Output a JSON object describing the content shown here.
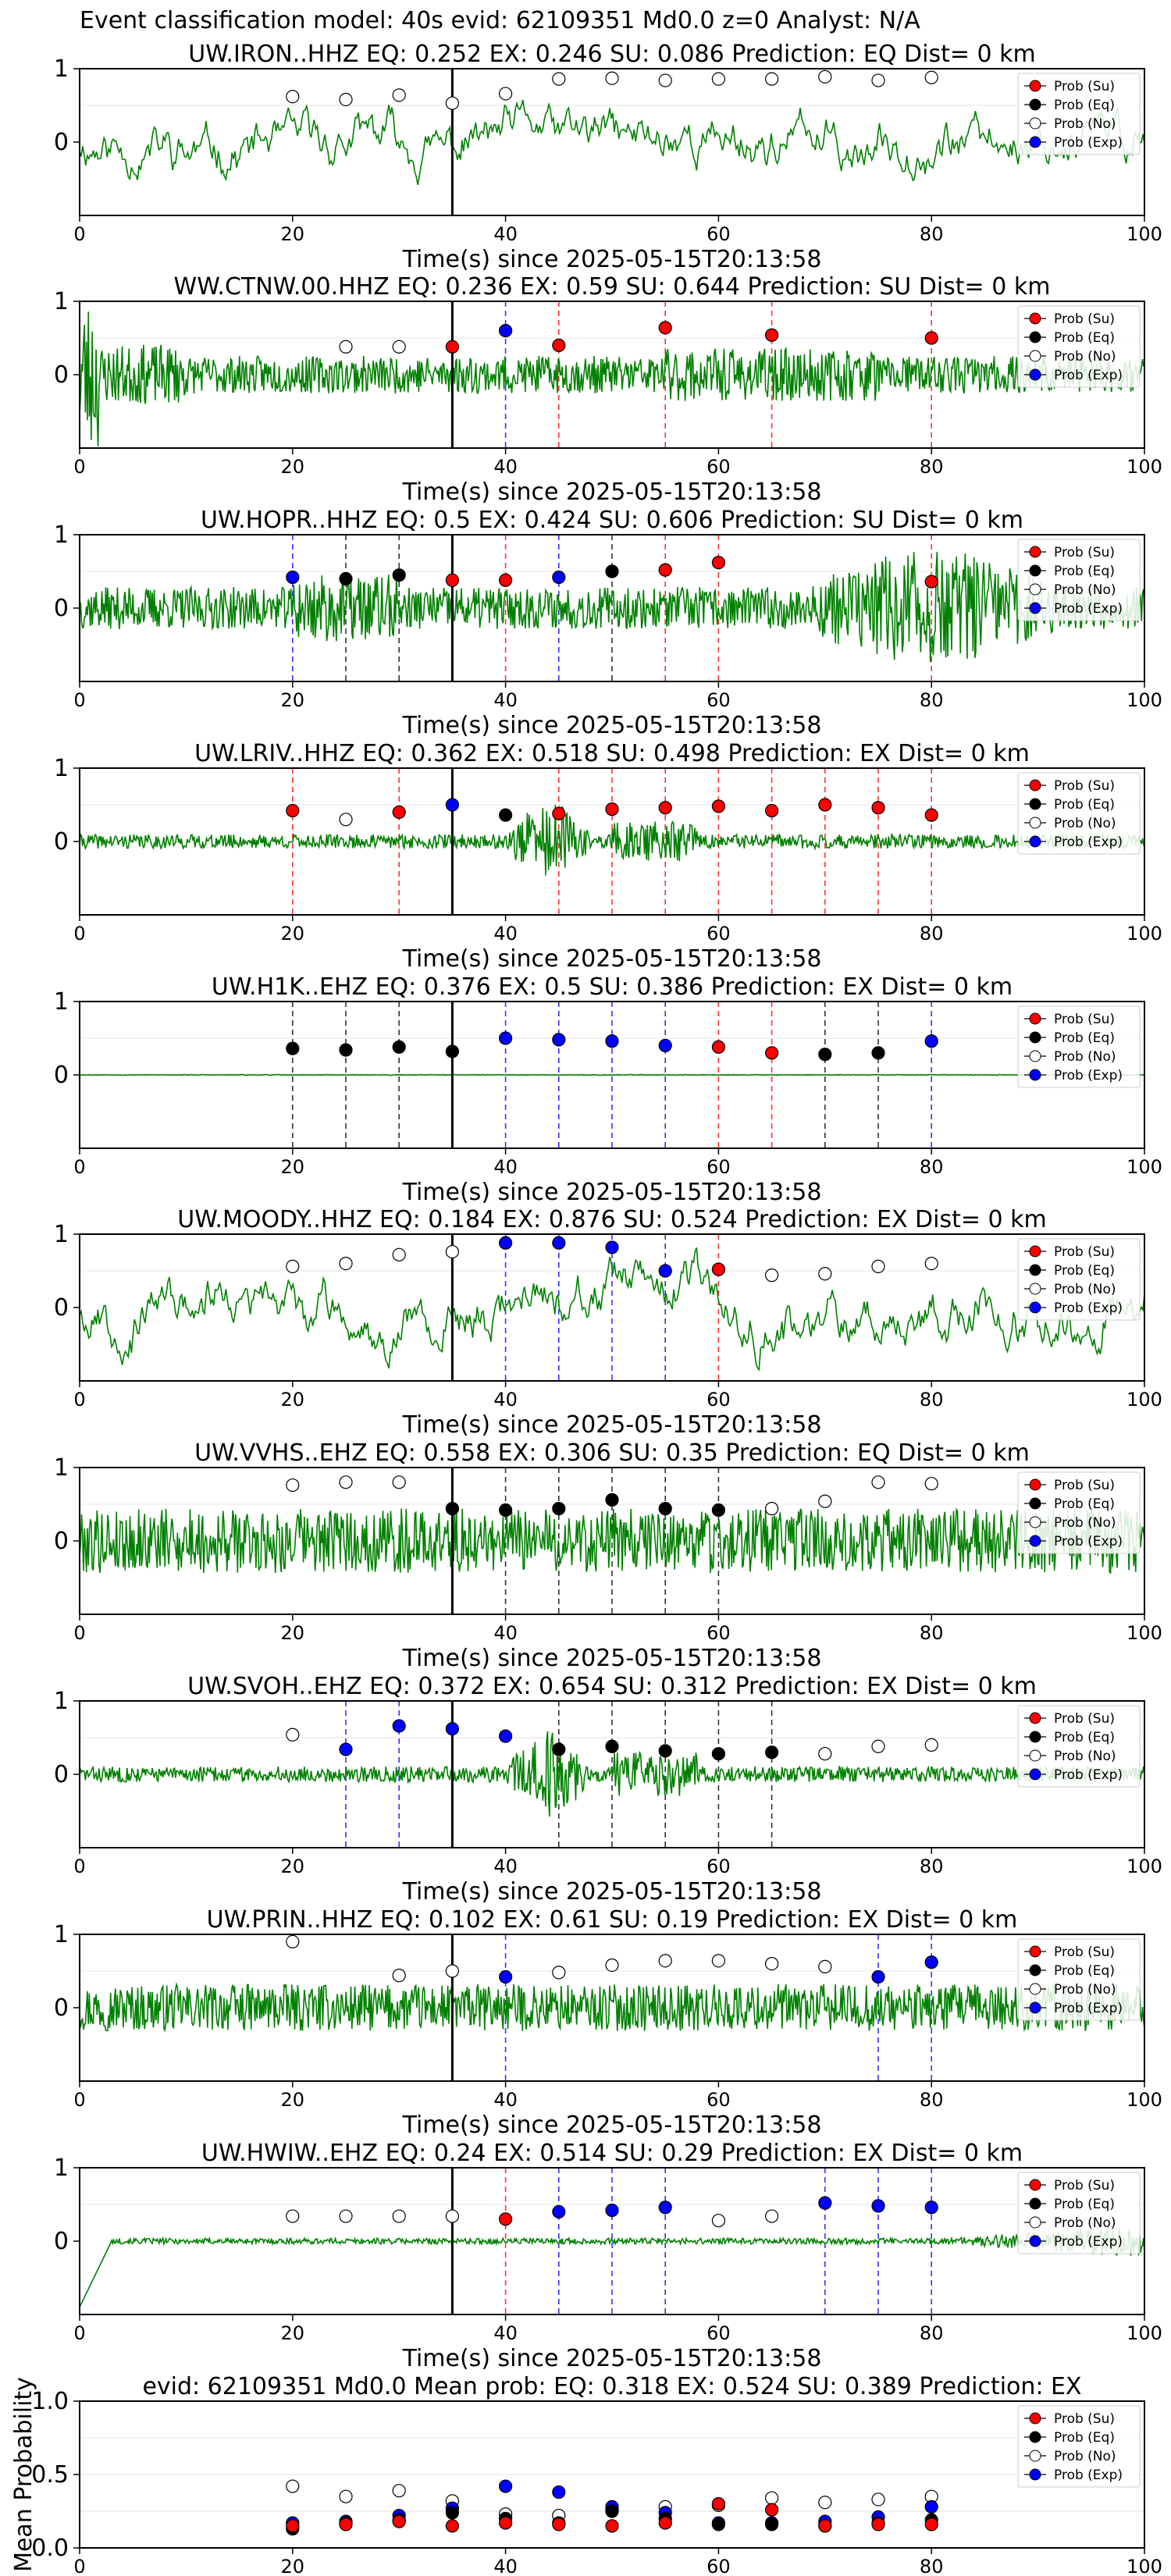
{
  "figure_title": "Event classification model: 40s evid: 62109351 Md0.0 z=0 Analyst: N/A",
  "legend_labels": [
    "Prob (Su)",
    "Prob (Eq)",
    "Prob (No)",
    "Prob (Exp)"
  ],
  "colors": {
    "su": "#ff0000",
    "eq": "#000000",
    "no": "#ffffff",
    "exp": "#0000ff",
    "trace": "#008000"
  },
  "chart_data": [
    {
      "type": "line",
      "title": "UW.IRON..HHZ   EQ: 0.252  EX: 0.246  SU: 0.086   Prediction: EQ    Dist= 0 km",
      "xlabel": "Time(s) since 2025-05-15T20:13:58",
      "xlim": [
        0,
        100
      ],
      "ylim": [
        -1,
        1
      ],
      "xticks": [
        0,
        20,
        40,
        60,
        80,
        100
      ],
      "yticks": [
        0,
        1
      ],
      "event_line": 35,
      "amplitude": 0.72,
      "seed": 11,
      "style": "lowfreq",
      "envelope": "uniform",
      "points": [
        [
          20,
          0.62,
          "no"
        ],
        [
          25,
          0.58,
          "no"
        ],
        [
          30,
          0.64,
          "no"
        ],
        [
          35,
          0.53,
          "no"
        ],
        [
          40,
          0.66,
          "no"
        ],
        [
          45,
          0.86,
          "no"
        ],
        [
          50,
          0.87,
          "no"
        ],
        [
          55,
          0.84,
          "no"
        ],
        [
          60,
          0.86,
          "no"
        ],
        [
          65,
          0.86,
          "no"
        ],
        [
          70,
          0.89,
          "no"
        ],
        [
          75,
          0.84,
          "no"
        ],
        [
          80,
          0.88,
          "no"
        ]
      ],
      "vlines": []
    },
    {
      "type": "line",
      "title": "WW.CTNW.00.HHZ   EQ: 0.236  EX: 0.59  SU: 0.644   Prediction: SU    Dist= 0 km",
      "xlabel": "Time(s) since 2025-05-15T20:13:58",
      "xlim": [
        0,
        100
      ],
      "ylim": [
        -1,
        1
      ],
      "xticks": [
        0,
        20,
        40,
        60,
        80,
        100
      ],
      "yticks": [
        0,
        1
      ],
      "event_line": 35,
      "amplitude": 0.32,
      "seed": 23,
      "style": "noise",
      "envelope": "earlydecay",
      "points": [
        [
          25,
          0.38,
          "no"
        ],
        [
          30,
          0.38,
          "no"
        ],
        [
          35,
          0.38,
          "su"
        ],
        [
          40,
          0.6,
          "exp"
        ],
        [
          45,
          0.4,
          "su"
        ],
        [
          55,
          0.64,
          "su"
        ],
        [
          65,
          0.54,
          "su"
        ],
        [
          80,
          0.5,
          "su"
        ]
      ],
      "vlines": [
        [
          40,
          "exp"
        ],
        [
          45,
          "su"
        ],
        [
          55,
          "su"
        ],
        [
          65,
          "su"
        ],
        [
          80,
          "su"
        ]
      ]
    },
    {
      "type": "line",
      "title": "UW.HOPR..HHZ   EQ: 0.5  EX: 0.424  SU: 0.606   Prediction: SU    Dist= 0 km",
      "xlabel": "Time(s) since 2025-05-15T20:13:58",
      "xlim": [
        0,
        100
      ],
      "ylim": [
        -1,
        1
      ],
      "xticks": [
        0,
        20,
        40,
        60,
        80,
        100
      ],
      "yticks": [
        0,
        1
      ],
      "event_line": 35,
      "amplitude": 0.45,
      "seed": 37,
      "style": "noise",
      "envelope": "rising",
      "points": [
        [
          20,
          0.42,
          "exp"
        ],
        [
          25,
          0.4,
          "eq"
        ],
        [
          30,
          0.45,
          "eq"
        ],
        [
          35,
          0.38,
          "su"
        ],
        [
          40,
          0.38,
          "su"
        ],
        [
          45,
          0.42,
          "exp"
        ],
        [
          50,
          0.5,
          "eq"
        ],
        [
          55,
          0.52,
          "su"
        ],
        [
          60,
          0.62,
          "su"
        ],
        [
          80,
          0.36,
          "su"
        ]
      ],
      "vlines": [
        [
          20,
          "exp"
        ],
        [
          25,
          "eq"
        ],
        [
          30,
          "eq"
        ],
        [
          40,
          "su"
        ],
        [
          45,
          "exp"
        ],
        [
          50,
          "eq"
        ],
        [
          55,
          "su"
        ],
        [
          60,
          "su"
        ],
        [
          80,
          "su"
        ]
      ]
    },
    {
      "type": "line",
      "title": "UW.LRIV..HHZ   EQ: 0.362  EX: 0.518  SU: 0.498   Prediction: EX    Dist= 0 km",
      "xlabel": "Time(s) since 2025-05-15T20:13:58",
      "xlim": [
        0,
        100
      ],
      "ylim": [
        -1,
        1
      ],
      "xticks": [
        0,
        20,
        40,
        60,
        80,
        100
      ],
      "yticks": [
        0,
        1
      ],
      "event_line": 35,
      "amplitude": 0.2,
      "seed": 41,
      "style": "noise",
      "envelope": "burst",
      "points": [
        [
          20,
          0.42,
          "su"
        ],
        [
          25,
          0.3,
          "no"
        ],
        [
          30,
          0.4,
          "su"
        ],
        [
          35,
          0.5,
          "exp"
        ],
        [
          40,
          0.36,
          "eq"
        ],
        [
          45,
          0.38,
          "su"
        ],
        [
          50,
          0.44,
          "su"
        ],
        [
          55,
          0.46,
          "su"
        ],
        [
          60,
          0.48,
          "su"
        ],
        [
          65,
          0.42,
          "su"
        ],
        [
          70,
          0.5,
          "su"
        ],
        [
          75,
          0.46,
          "su"
        ],
        [
          80,
          0.36,
          "su"
        ]
      ],
      "vlines": [
        [
          20,
          "su"
        ],
        [
          30,
          "su"
        ],
        [
          45,
          "su"
        ],
        [
          50,
          "su"
        ],
        [
          55,
          "su"
        ],
        [
          60,
          "su"
        ],
        [
          65,
          "su"
        ],
        [
          70,
          "su"
        ],
        [
          75,
          "su"
        ],
        [
          80,
          "su"
        ]
      ]
    },
    {
      "type": "line",
      "title": "UW.H1K..EHZ   EQ: 0.376  EX: 0.5  SU: 0.386   Prediction: EX    Dist= 0 km",
      "xlabel": "Time(s) since 2025-05-15T20:13:58",
      "xlim": [
        0,
        100
      ],
      "ylim": [
        -1,
        1
      ],
      "xticks": [
        0,
        20,
        40,
        60,
        80,
        100
      ],
      "yticks": [
        0,
        1
      ],
      "event_line": 35,
      "amplitude": 0.01,
      "seed": 53,
      "style": "flat",
      "envelope": "uniform",
      "points": [
        [
          20,
          0.36,
          "eq"
        ],
        [
          25,
          0.34,
          "eq"
        ],
        [
          30,
          0.38,
          "eq"
        ],
        [
          35,
          0.32,
          "eq"
        ],
        [
          40,
          0.5,
          "exp"
        ],
        [
          45,
          0.48,
          "exp"
        ],
        [
          50,
          0.46,
          "exp"
        ],
        [
          55,
          0.4,
          "exp"
        ],
        [
          60,
          0.38,
          "su"
        ],
        [
          65,
          0.3,
          "su"
        ],
        [
          70,
          0.28,
          "eq"
        ],
        [
          75,
          0.3,
          "eq"
        ],
        [
          80,
          0.46,
          "exp"
        ]
      ],
      "vlines": [
        [
          20,
          "eq"
        ],
        [
          25,
          "eq"
        ],
        [
          30,
          "eq"
        ],
        [
          40,
          "exp"
        ],
        [
          45,
          "exp"
        ],
        [
          50,
          "exp"
        ],
        [
          55,
          "exp"
        ],
        [
          60,
          "su"
        ],
        [
          65,
          "su"
        ],
        [
          70,
          "eq"
        ],
        [
          75,
          "eq"
        ],
        [
          80,
          "exp"
        ]
      ]
    },
    {
      "type": "line",
      "title": "UW.MOODY..HHZ   EQ: 0.184  EX: 0.876  SU: 0.524   Prediction: EX    Dist= 0 km",
      "xlabel": "Time(s) since 2025-05-15T20:13:58",
      "xlim": [
        0,
        100
      ],
      "ylim": [
        -1,
        1
      ],
      "xticks": [
        0,
        20,
        40,
        60,
        80,
        100
      ],
      "yticks": [
        0,
        1
      ],
      "event_line": 35,
      "amplitude": 0.75,
      "seed": 67,
      "style": "lowfreq",
      "envelope": "uniform",
      "points": [
        [
          20,
          0.56,
          "no"
        ],
        [
          25,
          0.6,
          "no"
        ],
        [
          30,
          0.72,
          "no"
        ],
        [
          35,
          0.76,
          "no"
        ],
        [
          40,
          0.88,
          "exp"
        ],
        [
          45,
          0.88,
          "exp"
        ],
        [
          50,
          0.82,
          "exp"
        ],
        [
          55,
          0.5,
          "exp"
        ],
        [
          60,
          0.52,
          "su"
        ],
        [
          65,
          0.44,
          "no"
        ],
        [
          70,
          0.46,
          "no"
        ],
        [
          75,
          0.56,
          "no"
        ],
        [
          80,
          0.6,
          "no"
        ]
      ],
      "vlines": [
        [
          40,
          "exp"
        ],
        [
          45,
          "exp"
        ],
        [
          50,
          "exp"
        ],
        [
          55,
          "exp"
        ],
        [
          60,
          "su"
        ]
      ]
    },
    {
      "type": "line",
      "title": "UW.VVHS..EHZ   EQ: 0.558  EX: 0.306  SU: 0.35   Prediction: EQ    Dist= 0 km",
      "xlabel": "Time(s) since 2025-05-15T20:13:58",
      "xlim": [
        0,
        100
      ],
      "ylim": [
        -1,
        1
      ],
      "xticks": [
        0,
        20,
        40,
        60,
        80,
        100
      ],
      "yticks": [
        0,
        1
      ],
      "event_line": 35,
      "amplitude": 0.55,
      "seed": 79,
      "style": "noise",
      "envelope": "uniform",
      "points": [
        [
          20,
          0.76,
          "no"
        ],
        [
          25,
          0.8,
          "no"
        ],
        [
          30,
          0.8,
          "no"
        ],
        [
          35,
          0.44,
          "eq"
        ],
        [
          40,
          0.42,
          "eq"
        ],
        [
          45,
          0.44,
          "eq"
        ],
        [
          50,
          0.56,
          "eq"
        ],
        [
          55,
          0.44,
          "eq"
        ],
        [
          60,
          0.42,
          "eq"
        ],
        [
          65,
          0.44,
          "no"
        ],
        [
          70,
          0.54,
          "no"
        ],
        [
          75,
          0.8,
          "no"
        ],
        [
          80,
          0.78,
          "no"
        ]
      ],
      "vlines": [
        [
          40,
          "eq"
        ],
        [
          45,
          "eq"
        ],
        [
          50,
          "eq"
        ],
        [
          55,
          "eq"
        ],
        [
          60,
          "eq"
        ]
      ]
    },
    {
      "type": "line",
      "title": "UW.SVOH..EHZ   EQ: 0.372  EX: 0.654  SU: 0.312   Prediction: EX    Dist= 0 km",
      "xlabel": "Time(s) since 2025-05-15T20:13:58",
      "xlim": [
        0,
        100
      ],
      "ylim": [
        -1,
        1
      ],
      "xticks": [
        0,
        20,
        40,
        60,
        80,
        100
      ],
      "yticks": [
        0,
        1
      ],
      "event_line": 35,
      "amplitude": 0.22,
      "seed": 83,
      "style": "noise",
      "envelope": "burst",
      "points": [
        [
          20,
          0.54,
          "no"
        ],
        [
          25,
          0.34,
          "exp"
        ],
        [
          30,
          0.66,
          "exp"
        ],
        [
          35,
          0.62,
          "exp"
        ],
        [
          40,
          0.52,
          "exp"
        ],
        [
          45,
          0.34,
          "eq"
        ],
        [
          50,
          0.38,
          "eq"
        ],
        [
          55,
          0.32,
          "eq"
        ],
        [
          60,
          0.28,
          "eq"
        ],
        [
          65,
          0.3,
          "eq"
        ],
        [
          70,
          0.28,
          "no"
        ],
        [
          75,
          0.38,
          "no"
        ],
        [
          80,
          0.4,
          "no"
        ]
      ],
      "vlines": [
        [
          25,
          "exp"
        ],
        [
          30,
          "exp"
        ],
        [
          45,
          "eq"
        ],
        [
          50,
          "eq"
        ],
        [
          55,
          "eq"
        ],
        [
          60,
          "eq"
        ],
        [
          65,
          "eq"
        ]
      ]
    },
    {
      "type": "line",
      "title": "UW.PRIN..HHZ   EQ: 0.102  EX: 0.61  SU: 0.19   Prediction: EX    Dist= 0 km",
      "xlabel": "Time(s) since 2025-05-15T20:13:58",
      "xlim": [
        0,
        100
      ],
      "ylim": [
        -1,
        1
      ],
      "xticks": [
        0,
        20,
        40,
        60,
        80,
        100
      ],
      "yticks": [
        0,
        1
      ],
      "event_line": 35,
      "amplitude": 0.4,
      "seed": 97,
      "style": "noise",
      "envelope": "uniform",
      "points": [
        [
          20,
          0.9,
          "no"
        ],
        [
          30,
          0.44,
          "no"
        ],
        [
          35,
          0.5,
          "no"
        ],
        [
          40,
          0.42,
          "exp"
        ],
        [
          45,
          0.48,
          "no"
        ],
        [
          50,
          0.58,
          "no"
        ],
        [
          55,
          0.64,
          "no"
        ],
        [
          60,
          0.64,
          "no"
        ],
        [
          65,
          0.6,
          "no"
        ],
        [
          70,
          0.56,
          "no"
        ],
        [
          75,
          0.42,
          "exp"
        ],
        [
          80,
          0.62,
          "exp"
        ]
      ],
      "vlines": [
        [
          40,
          "exp"
        ],
        [
          75,
          "exp"
        ],
        [
          80,
          "exp"
        ]
      ]
    },
    {
      "type": "line",
      "title": "UW.HWIW..EHZ   EQ: 0.24  EX: 0.514  SU: 0.29   Prediction: EX    Dist= 0 km",
      "xlabel": "Time(s) since 2025-05-15T20:13:58",
      "xlim": [
        0,
        100
      ],
      "ylim": [
        -1,
        1
      ],
      "xticks": [
        0,
        20,
        40,
        60,
        80,
        100
      ],
      "yticks": [
        0,
        1
      ],
      "event_line": 35,
      "amplitude": 0.1,
      "seed": 101,
      "style": "noise",
      "envelope": "hwiw",
      "points": [
        [
          20,
          0.34,
          "no"
        ],
        [
          25,
          0.34,
          "no"
        ],
        [
          30,
          0.34,
          "no"
        ],
        [
          35,
          0.34,
          "no"
        ],
        [
          40,
          0.3,
          "su"
        ],
        [
          45,
          0.4,
          "exp"
        ],
        [
          50,
          0.42,
          "exp"
        ],
        [
          55,
          0.46,
          "exp"
        ],
        [
          60,
          0.28,
          "no"
        ],
        [
          65,
          0.34,
          "no"
        ],
        [
          70,
          0.52,
          "exp"
        ],
        [
          75,
          0.48,
          "exp"
        ],
        [
          80,
          0.46,
          "exp"
        ]
      ],
      "vlines": [
        [
          40,
          "su"
        ],
        [
          45,
          "exp"
        ],
        [
          50,
          "exp"
        ],
        [
          55,
          "exp"
        ],
        [
          70,
          "exp"
        ],
        [
          75,
          "exp"
        ],
        [
          80,
          "exp"
        ]
      ]
    },
    {
      "type": "scatter",
      "title": "evid: 62109351   Md0.0   Mean prob:   EQ: 0.318  EX: 0.524  SU: 0.389   Prediction: EX",
      "ylabel": "Mean Probability",
      "xlim": [
        0,
        100
      ],
      "ylim": [
        0,
        1
      ],
      "xticks": [
        0,
        20,
        40,
        60,
        80,
        100
      ],
      "yticks": [
        0.0,
        0.5,
        1.0
      ],
      "ytick_labels": [
        "0.0",
        "0.5",
        "1.0"
      ],
      "x": [
        20,
        25,
        30,
        35,
        40,
        45,
        50,
        55,
        60,
        65,
        70,
        75,
        80
      ],
      "series": [
        {
          "key": "no",
          "values": [
            0.42,
            0.35,
            0.39,
            0.32,
            0.23,
            0.22,
            0.26,
            0.28,
            0.29,
            0.34,
            0.31,
            0.33,
            0.35
          ]
        },
        {
          "key": "exp",
          "values": [
            0.17,
            0.18,
            0.22,
            0.27,
            0.42,
            0.38,
            0.28,
            0.24,
            0.17,
            0.17,
            0.18,
            0.21,
            0.28
          ]
        },
        {
          "key": "eq",
          "values": [
            0.13,
            0.17,
            0.19,
            0.24,
            0.2,
            0.17,
            0.25,
            0.2,
            0.16,
            0.16,
            0.15,
            0.17,
            0.19
          ]
        },
        {
          "key": "su",
          "values": [
            0.15,
            0.16,
            0.18,
            0.15,
            0.17,
            0.16,
            0.15,
            0.17,
            0.3,
            0.26,
            0.15,
            0.16,
            0.16
          ]
        }
      ]
    }
  ]
}
